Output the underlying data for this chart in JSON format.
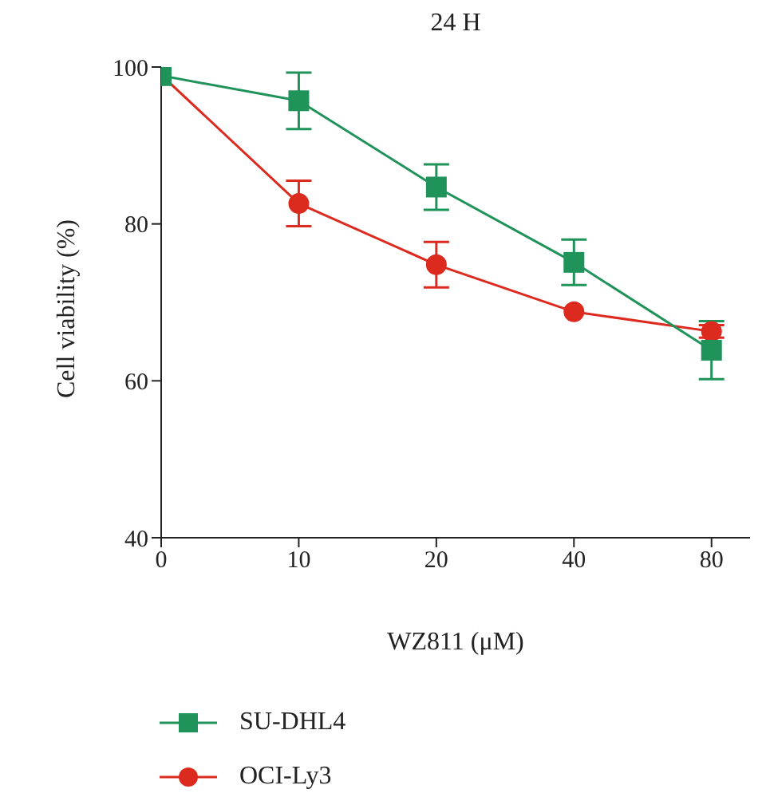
{
  "chart_data": {
    "type": "line",
    "title": "24 H",
    "xlabel": "WZ811 (μM)",
    "ylabel": "Cell viability (%)",
    "categories": [
      "0",
      "10",
      "20",
      "40",
      "80"
    ],
    "series": [
      {
        "name": "SU-DHL4",
        "color": "#20935a",
        "marker": "square",
        "values": [
          98.9,
          95.7,
          84.7,
          75.1,
          63.9
        ],
        "errors": [
          null,
          3.6,
          2.9,
          2.9,
          3.7
        ]
      },
      {
        "name": "OCI-Ly3",
        "color": "#dd2a1f",
        "marker": "circle",
        "values": [
          99,
          82.6,
          74.8,
          68.8,
          66.3
        ],
        "errors": [
          null,
          2.9,
          2.9,
          null,
          0.8
        ]
      }
    ],
    "ylim": [
      40,
      100
    ],
    "yticks": [
      40,
      60,
      80,
      100
    ],
    "grid": false,
    "legend": "bottom left"
  }
}
